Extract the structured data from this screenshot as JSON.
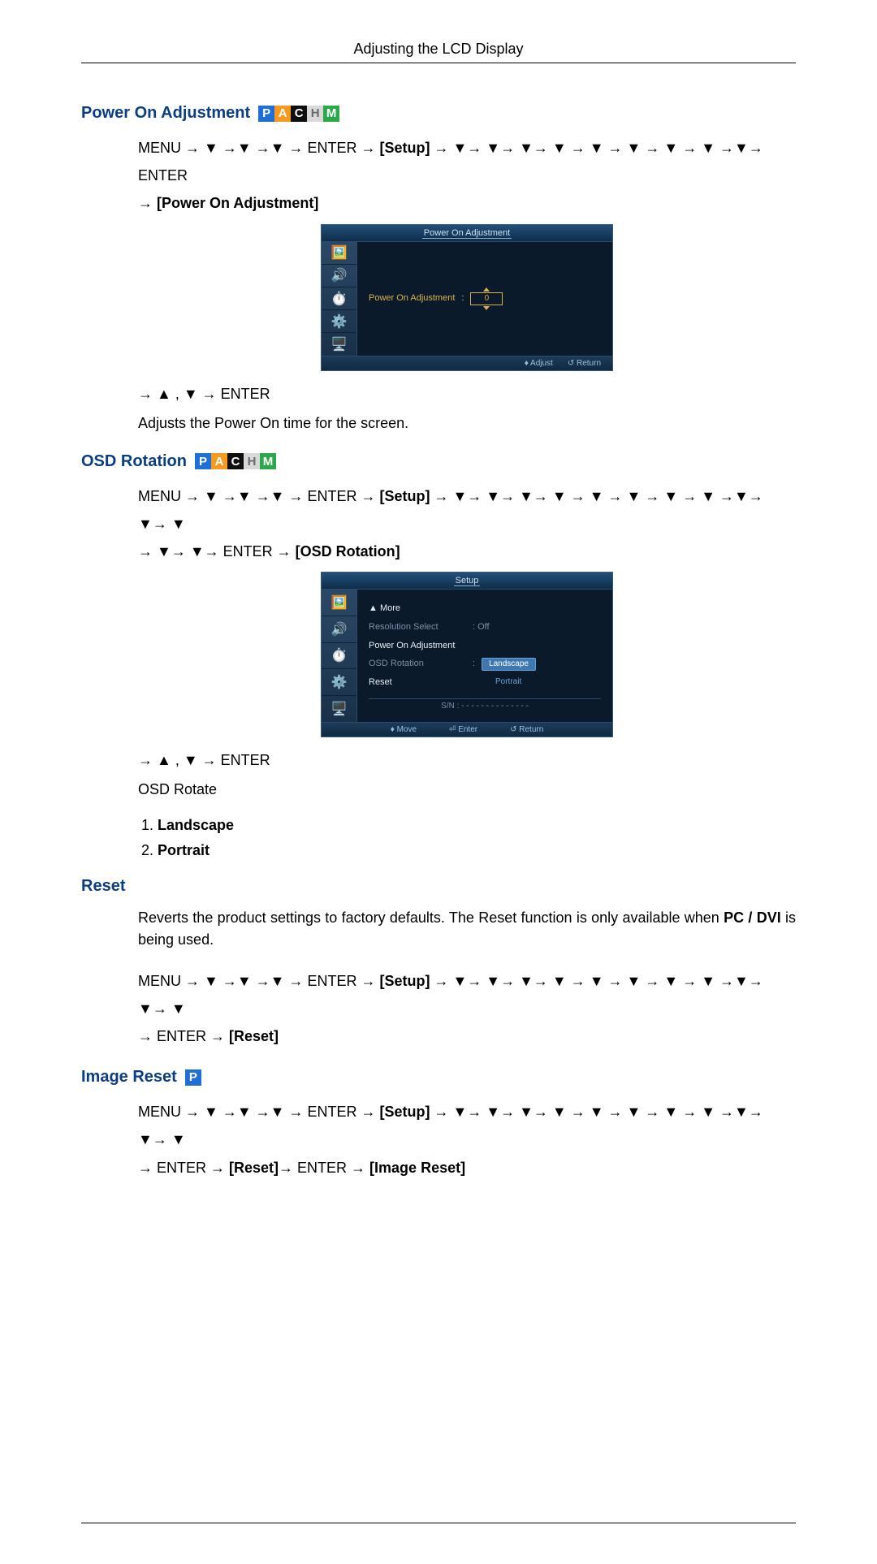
{
  "header": {
    "title": "Adjusting the LCD Display"
  },
  "badges": {
    "letters": [
      "P",
      "A",
      "C",
      "H",
      "M"
    ],
    "colors": [
      "#1f6fd6",
      "#f39a1f",
      "#0f0f0f",
      "#d9d9d9",
      "#2aa84a"
    ],
    "text_colors": [
      "#ffffff",
      "#ffffff",
      "#ffffff",
      "#6a6a6a",
      "#ffffff"
    ]
  },
  "sections": {
    "power_on": {
      "title": "Power On Adjustment",
      "nav1_prefix": "MENU → ▼ →▼ →▼ → ENTER → ",
      "nav1_bracket": "[Setup]",
      "nav1_suffix": " → ▼→ ▼→ ▼→ ▼ → ▼ → ▼ → ▼ → ▼ →▼→ ENTER",
      "nav2_prefix": "→ ",
      "nav2_bracket": "[Power On Adjustment]",
      "arrow_enter": "→ ▲ , ▼ → ENTER",
      "desc": "Adjusts the Power On time for the screen.",
      "osd": {
        "title": "Power On Adjustment",
        "row_label": "Power On Adjustment",
        "row_value": "0",
        "footer": [
          "♦ Adjust",
          "↺ Return"
        ]
      }
    },
    "osd_rotation": {
      "title": "OSD Rotation",
      "nav1_prefix": "MENU → ▼ →▼ →▼ → ENTER → ",
      "nav1_bracket": "[Setup]",
      "nav1_suffix": " → ▼→ ▼→ ▼→ ▼ → ▼ → ▼ → ▼ → ▼ →▼→ ▼→ ▼",
      "nav2_prefix": "→ ▼→ ▼→ ENTER → ",
      "nav2_bracket": "[OSD Rotation]",
      "arrow_enter": "→ ▲ , ▼ → ENTER",
      "desc": "OSD Rotate",
      "options": [
        "Landscape",
        "Portrait"
      ],
      "osd": {
        "title": "Setup",
        "rows": [
          {
            "label": "▲ More",
            "cls": "osd-label-white"
          },
          {
            "label": "Resolution Select",
            "cls": "osd-label-dim",
            "value": ": Off",
            "value_cls": "osd-label-dim"
          },
          {
            "label": "Power On Adjustment",
            "cls": "osd-label-white"
          },
          {
            "label": "OSD Rotation",
            "cls": "osd-label-dim",
            "pill_sel": "Landscape"
          },
          {
            "label": "Reset",
            "cls": "osd-label-white",
            "pill_plain": "Portrait"
          }
        ],
        "sn": "S/N : - - - - - - - - - - - - - -",
        "footer": [
          "♦ Move",
          "⏎ Enter",
          "↺ Return"
        ]
      }
    },
    "reset": {
      "title": "Reset",
      "desc_pre": "Reverts the product settings to factory defaults. The Reset function is only available when ",
      "desc_bold": "PC / DVI",
      "desc_post": " is being used.",
      "nav1_prefix": "MENU → ▼ →▼ →▼ → ENTER → ",
      "nav1_bracket": "[Setup]",
      "nav1_suffix": " → ▼→ ▼→ ▼→ ▼ → ▼ → ▼ → ▼ → ▼ →▼→ ▼→ ▼",
      "nav2_prefix": "→ ENTER → ",
      "nav2_bracket": "[Reset]"
    },
    "image_reset": {
      "title": "Image Reset",
      "badge_single": {
        "letter": "P",
        "bg": "#1f6fd6",
        "fg": "#ffffff"
      },
      "nav1_prefix": "MENU → ▼ →▼ →▼ → ENTER → ",
      "nav1_bracket": "[Setup]",
      "nav1_suffix": " → ▼→ ▼→ ▼→ ▼ → ▼ → ▼ → ▼ → ▼ →▼→ ▼→ ▼",
      "nav2_prefix": "→ ENTER → ",
      "nav2_bracket1": "[Reset]",
      "nav2_mid": "→ ENTER → ",
      "nav2_bracket2": "[Image Reset]"
    }
  }
}
